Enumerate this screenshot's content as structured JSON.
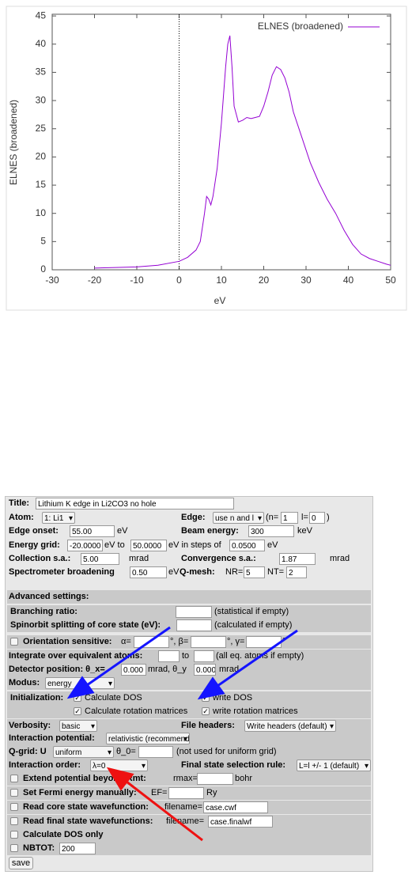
{
  "chart_data": {
    "type": "line",
    "xlabel": "eV",
    "ylabel": "ELNES (broadened)",
    "x": [
      -20,
      -15,
      -10,
      -5,
      0,
      2,
      4,
      5,
      6,
      6.5,
      7,
      7.5,
      8,
      9,
      10,
      11,
      11.5,
      12,
      12.5,
      13,
      14,
      15,
      16,
      17,
      18,
      19,
      20,
      21,
      22,
      23,
      24,
      25,
      26,
      27,
      29,
      31,
      33,
      35,
      37,
      39,
      41,
      43,
      45,
      47,
      49,
      50
    ],
    "series": [
      {
        "name": "ELNES (broadened)",
        "color": "#9400d3",
        "values": [
          0.3,
          0.4,
          0.5,
          0.8,
          1.5,
          2.2,
          3.5,
          5,
          10,
          13,
          12.5,
          11.5,
          13,
          18,
          26,
          36,
          40,
          41.5,
          36,
          29,
          26.2,
          26.5,
          27,
          26.8,
          27,
          27.2,
          29,
          31.5,
          34.5,
          36,
          35.5,
          34,
          31.5,
          28,
          23.5,
          19,
          15.5,
          12.5,
          10,
          7,
          4.5,
          2.8,
          2,
          1.5,
          1,
          0.8
        ]
      }
    ],
    "xlim": [
      -30,
      50
    ],
    "xticks": [
      -30,
      -20,
      -10,
      0,
      10,
      20,
      30,
      40,
      50
    ],
    "ylim": [
      0,
      45.3
    ],
    "yticks": [
      0,
      5,
      10,
      15,
      20,
      25,
      30,
      35,
      40,
      45
    ],
    "legend": "top-right"
  },
  "form": {
    "rows": [
      [
        "Title:",
        "Lithium K edge in Li2CO3 no hole"
      ],
      [
        "Atom:",
        "1: Li1",
        "Edge:",
        "use n and l",
        "(n=",
        "1",
        "l=",
        "0",
        ")"
      ],
      [
        "Edge onset:",
        "55.00",
        "eV",
        "Beam energy:",
        "300",
        "keV"
      ],
      [
        "Energy grid:",
        "-20.0000",
        "eV to",
        "50.0000",
        "eV in steps of",
        "0.0500",
        "eV"
      ],
      [
        "Collection s.a.:",
        "5.00",
        "mrad",
        "Convergence s.a.:",
        "1.87",
        "mrad"
      ],
      [
        "Spectrometer broadening",
        "0.50",
        "eV",
        "Q-mesh:",
        "NR=",
        "5",
        "NT=",
        "2"
      ],
      [
        "Advanced settings:"
      ],
      [
        "Branching ratio:",
        "(statistical if empty)"
      ],
      [
        "Spinorbit splitting of core state (eV):",
        "(calculated if empty)"
      ],
      [
        "Orientation sensitive:",
        "α=",
        "°, β=",
        "°, γ=",
        "°"
      ],
      [
        "Integrate over equivalent atoms:",
        "to",
        "(all eq. atoms if empty)"
      ],
      [
        "Detector position: θ_x=",
        "0.000",
        "mrad, θ_y",
        "0.000",
        "mrad"
      ],
      [
        "Modus:",
        "energy"
      ],
      [
        "Initialization:",
        "Calculate DOS",
        "write DOS"
      ],
      [
        "Calculate rotation matrices",
        "write rotation matrices"
      ],
      [
        "Verbosity:",
        "basic",
        "File headers:",
        "Write headers (default)"
      ],
      [
        "Interaction potential:",
        "relativistic (recommended)"
      ],
      [
        "Q-grid: U",
        "uniform",
        "θ_0=",
        "(not used for uniform grid)"
      ],
      [
        "Interaction order:",
        "λ=0",
        "Final state selection rule:",
        "L=l +/- 1 (default)"
      ],
      [
        "Extend potential beyond Rmt:",
        "rmax=",
        "bohr"
      ],
      [
        "Set Fermi energy manually:",
        "EF=",
        "Ry"
      ],
      [
        "Read core state wavefunction:",
        "filename=",
        "case.cwf"
      ],
      [
        "Read final state wavefunctions:",
        "filename=",
        "case.finalwf"
      ],
      [
        "Calculate DOS only"
      ],
      [
        "NBTOT:",
        "200"
      ],
      [
        "save"
      ]
    ]
  }
}
